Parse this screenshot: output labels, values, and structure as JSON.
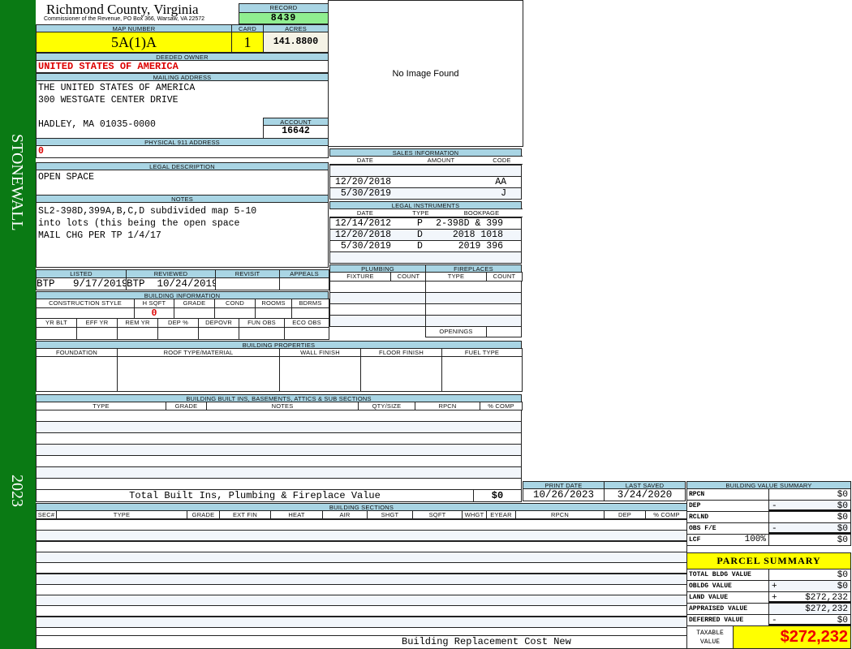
{
  "sidebar": {
    "name": "STONEWALL",
    "year": "2023",
    "color": "#0a7a14"
  },
  "header": {
    "title": "Richmond County, Virginia",
    "subtitle": "Commissioner of the Revenue, PO Box 366, Warsaw, VA 22572",
    "record_label": "RECORD",
    "record": "8439",
    "map_label": "MAP NUMBER",
    "map_number": "5A(1)A",
    "card_label": "CARD",
    "card": "1",
    "acres_label": "ACRES",
    "acres": "141.8800"
  },
  "owner": {
    "label": "DEEDED OWNER",
    "name": "UNITED STATES OF AMERICA"
  },
  "mailing": {
    "label": "MAILING ADDRESS",
    "line1": "THE UNITED STATES OF AMERICA",
    "line2": "300 WESTGATE CENTER DRIVE",
    "line3": "HADLEY, MA 01035-0000",
    "account_label": "ACCOUNT",
    "account": "16642"
  },
  "physical": {
    "label": "PHYSICAL 911 ADDRESS",
    "value": "0"
  },
  "image": {
    "text": "No Image Found"
  },
  "legal": {
    "label": "LEGAL DESCRIPTION",
    "value": "OPEN SPACE"
  },
  "notes": {
    "label": "NOTES",
    "lines": [
      "SL2-398D,399A,B,C,D subdivided map 5-10",
      "into lots (this being the open space",
      "MAIL CHG PER TP 1/4/17"
    ]
  },
  "listing": {
    "headers": [
      "LISTED",
      "REVIEWED",
      "REVISIT",
      "APPEALS"
    ],
    "values": [
      "BTP   9/17/2019",
      "BTP  10/24/2019",
      "",
      ""
    ]
  },
  "building_info": {
    "label": "BUILDING INFORMATION",
    "headers1": [
      "CONSTRUCTION STYLE",
      "H SQFT",
      "GRADE",
      "COND",
      "ROOMS",
      "BDRMS"
    ],
    "values1": [
      "",
      "0",
      "",
      "",
      "",
      ""
    ],
    "headers2": [
      "YR BLT",
      "EFF YR",
      "REM YR",
      "DEP %",
      "DEPOVR",
      "FUN OBS",
      "ECO OBS"
    ]
  },
  "sales": {
    "label": "SALES INFORMATION",
    "headers": [
      "DATE",
      "AMOUNT",
      "CODE"
    ],
    "rows": [
      [
        "",
        "",
        ""
      ],
      [
        "12/20/2018",
        "",
        "AA"
      ],
      [
        " 5/30/2019",
        "",
        "J"
      ]
    ]
  },
  "instruments": {
    "label": "LEGAL INSTRUMENTS",
    "headers": [
      "DATE",
      "TYPE",
      "BOOKPAGE"
    ],
    "rows": [
      [
        "12/14/2012",
        "P",
        "2-398D & 399"
      ],
      [
        "12/20/2018",
        "D",
        "2018 1018"
      ],
      [
        " 5/30/2019",
        "D",
        "2019 396"
      ]
    ]
  },
  "plumbing": {
    "label": "PLUMBING",
    "headers": [
      "FIXTURE",
      "COUNT"
    ]
  },
  "fireplaces": {
    "label": "FIREPLACES",
    "headers": [
      "TYPE",
      "COUNT"
    ],
    "openings": "OPENINGS"
  },
  "properties": {
    "label": "BUILDING PROPERTIES",
    "headers": [
      "FOUNDATION",
      "ROOF TYPE/MATERIAL",
      "WALL FINISH",
      "FLOOR FINISH",
      "FUEL TYPE"
    ]
  },
  "builtins": {
    "label": "BUILDING BUILT INS, BASEMENTS, ATTICS & SUB SECTIONS",
    "headers": [
      "TYPE",
      "GRADE",
      "NOTES",
      "QTY/SIZE",
      "RPCN",
      "% COMP"
    ],
    "total_label": "Total Built Ins, Plumbing & Fireplace Value",
    "total": "$0"
  },
  "dates": {
    "print_label": "PRINT DATE",
    "print": "10/26/2023",
    "saved_label": "LAST SAVED",
    "saved": "3/24/2020"
  },
  "sections": {
    "label": "BUILDING SECTIONS",
    "headers": [
      "SEC#",
      "TYPE",
      "GRADE",
      "EXT FIN",
      "HEAT",
      "AIR",
      "SHGT",
      "SQFT",
      "WHGT",
      "EYEAR",
      "RPCN",
      "DEP",
      "% COMP"
    ],
    "footer": "Building Replacement Cost New"
  },
  "value_summary": {
    "label": "BUILDING VALUE SUMMARY",
    "rows": [
      {
        "label": "RPCN",
        "op": "",
        "value": "$0"
      },
      {
        "label": "DEP",
        "op": "-",
        "value": "$0"
      },
      {
        "label": "RCLND",
        "op": "",
        "value": "$0"
      },
      {
        "label": "OBS F/E",
        "op": "-",
        "value": "$0"
      },
      {
        "label": "LCF",
        "extra": "100%",
        "op": "",
        "value": "$0"
      }
    ]
  },
  "parcel": {
    "label": "PARCEL SUMMARY",
    "rows": [
      {
        "label": "TOTAL BLDG VALUE",
        "op": "",
        "value": "$0"
      },
      {
        "label": "OBLDG VALUE",
        "op": "+",
        "value": "$0"
      },
      {
        "label": "LAND VALUE",
        "op": "+",
        "value": "$272,232"
      },
      {
        "label": "APPRAISED VALUE",
        "op": "",
        "value": "$272,232"
      },
      {
        "label": "DEFERRED VALUE",
        "op": "-",
        "value": "$0"
      }
    ],
    "taxable_label": "TAXABLE VALUE",
    "taxable": "$272,232"
  }
}
